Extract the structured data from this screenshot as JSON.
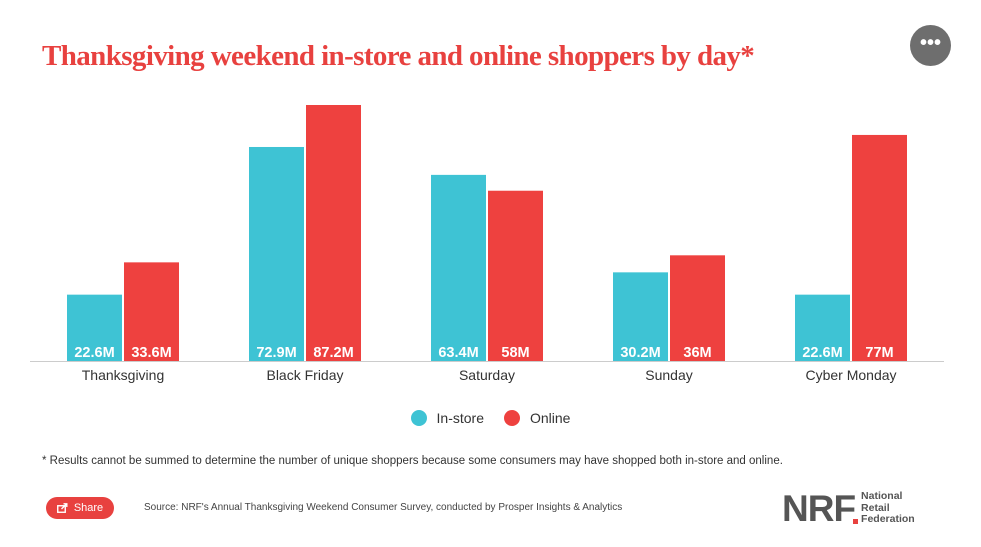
{
  "title": "Thanksgiving weekend in-store and online shoppers by day*",
  "more_button_label": "•••",
  "legend": [
    {
      "label": "In-store",
      "color": "#3ec3d4"
    },
    {
      "label": "Online",
      "color": "#ee413f"
    }
  ],
  "footnote": "* Results cannot be summed to determine the number of unique shoppers because some consumers may have shopped both in-store and online.",
  "share_label": "Share",
  "source": "Source: NRF's Annual Thanksgiving Weekend Consumer Survey, conducted by Prosper Insights & Analytics",
  "logo": {
    "mark": "NRF",
    "lines": [
      "National",
      "Retail",
      "Federation"
    ]
  },
  "colors": {
    "accent": "#e8413f",
    "instore": "#3ec3d4",
    "online": "#ee413f"
  },
  "chart_data": {
    "type": "bar",
    "categories": [
      "Thanksgiving",
      "Black Friday",
      "Saturday",
      "Sunday",
      "Cyber Monday"
    ],
    "series": [
      {
        "name": "In-store",
        "values": [
          22.6,
          72.9,
          63.4,
          30.2,
          22.6
        ],
        "labels": [
          "22.6M",
          "72.9M",
          "63.4M",
          "30.2M",
          "22.6M"
        ],
        "color": "#3ec3d4"
      },
      {
        "name": "Online",
        "values": [
          33.6,
          87.2,
          58,
          36,
          77
        ],
        "labels": [
          "33.6M",
          "87.2M",
          "58M",
          "36M",
          "77M"
        ],
        "color": "#ee413f"
      }
    ],
    "title": "Thanksgiving weekend in-store and online shoppers by day*",
    "xlabel": "",
    "ylabel": "",
    "ylim": [
      0,
      90
    ],
    "grid": false,
    "legend_position": "bottom-center"
  }
}
